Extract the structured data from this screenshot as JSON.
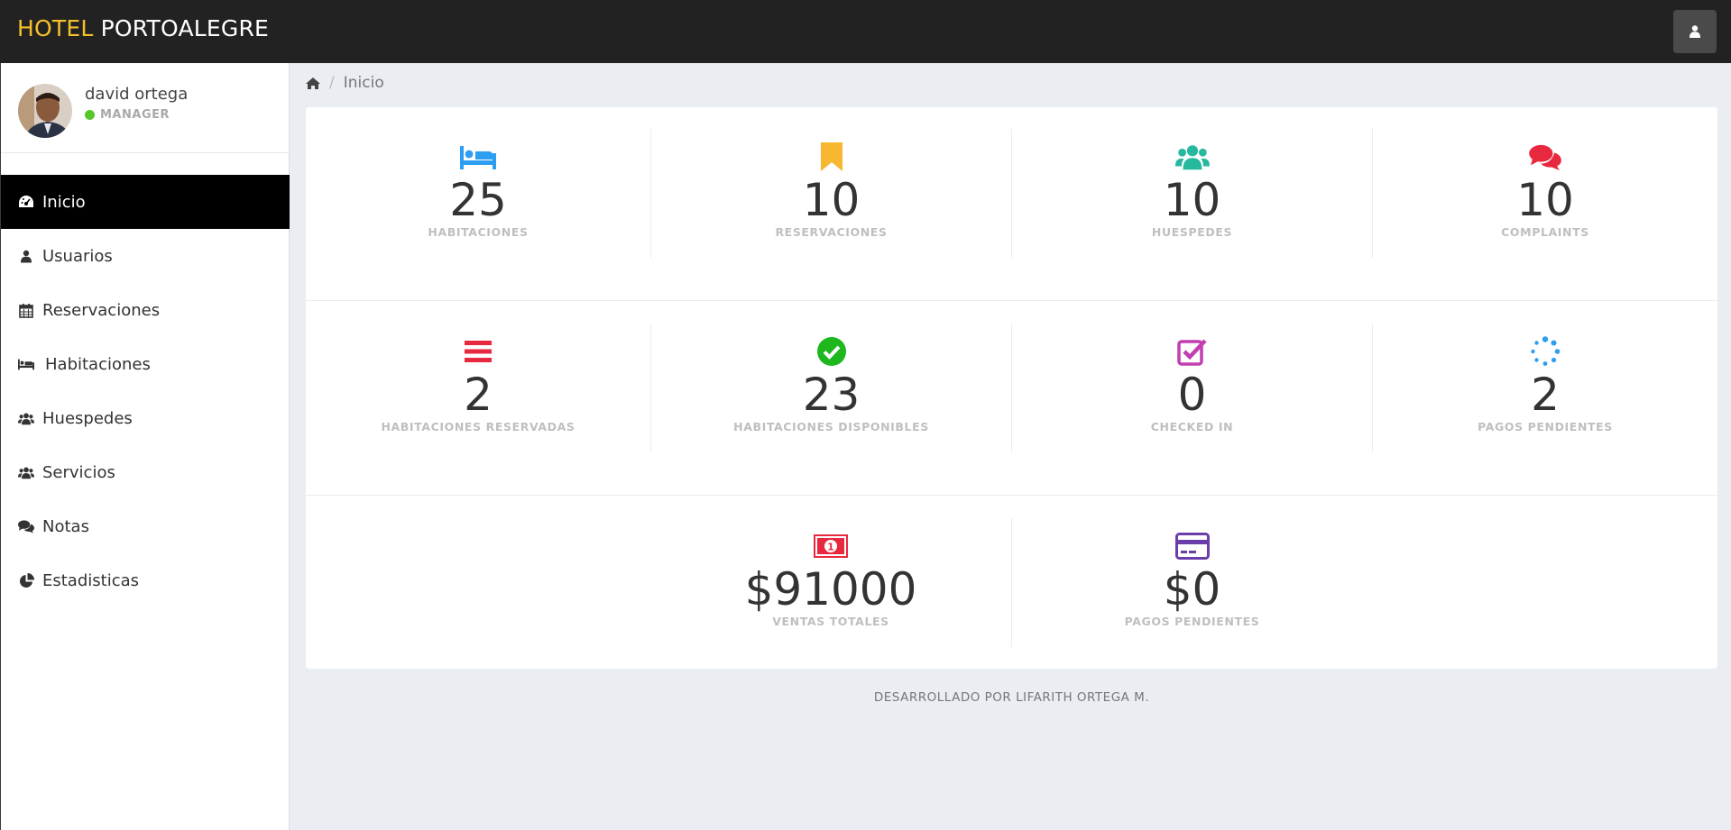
{
  "header": {
    "brand_part1": "HOTEL",
    "brand_part2": "PORTOALEGRE",
    "brand_color": "#f5c02c",
    "user_button_icon": "user-icon"
  },
  "sidebar": {
    "profile": {
      "name": "david ortega",
      "role": "MANAGER",
      "status_color": "#57c72b"
    },
    "items": [
      {
        "label": "Inicio",
        "icon": "dashboard-icon",
        "active": true
      },
      {
        "label": "Usuarios",
        "icon": "user-icon"
      },
      {
        "label": "Reservaciones",
        "icon": "calendar-icon"
      },
      {
        "label": "Habitaciones",
        "icon": "bed-icon"
      },
      {
        "label": "Huespedes",
        "icon": "users-icon"
      },
      {
        "label": "Servicios",
        "icon": "users-icon"
      },
      {
        "label": "Notas",
        "icon": "comments-icon"
      },
      {
        "label": "Estadisticas",
        "icon": "pie-chart-icon"
      }
    ]
  },
  "breadcrumb": {
    "home_icon": "home-icon",
    "current": "Inicio"
  },
  "stats": {
    "row1": [
      {
        "value": "25",
        "label": "HABITACIONES",
        "icon": "bed-icon",
        "color": "#2e9ef0"
      },
      {
        "value": "10",
        "label": "RESERVACIONES",
        "icon": "bookmark-icon",
        "color": "#f7b731"
      },
      {
        "value": "10",
        "label": "HUESPEDES",
        "icon": "users-icon",
        "color": "#26b9a0"
      },
      {
        "value": "10",
        "label": "COMPLAINTS",
        "icon": "comments-icon",
        "color": "#e8283f"
      }
    ],
    "row2": [
      {
        "value": "2",
        "label": "HABITACIONES RESERVADAS",
        "icon": "bars-icon",
        "color": "#e8283f"
      },
      {
        "value": "23",
        "label": "HABITACIONES DISPONIBLES",
        "icon": "check-circle-icon",
        "color": "#1eb81e"
      },
      {
        "value": "0",
        "label": "CHECKED IN",
        "icon": "check-square-icon",
        "color": "#c13fb1"
      },
      {
        "value": "2",
        "label": "PAGOS PENDIENTES",
        "icon": "spinner-icon",
        "color": "#2e9ef0"
      }
    ],
    "row3": [
      {
        "value": "$91000",
        "label": "VENTAS TOTALES",
        "icon": "money-icon",
        "color": "#e8283f"
      },
      {
        "value": "$0",
        "label": "PAGOS PENDIENTES",
        "icon": "credit-card-icon",
        "color": "#6a3da8"
      }
    ]
  },
  "footer": {
    "text": "DESARROLLADO POR LIFARITH ORTEGA M."
  }
}
